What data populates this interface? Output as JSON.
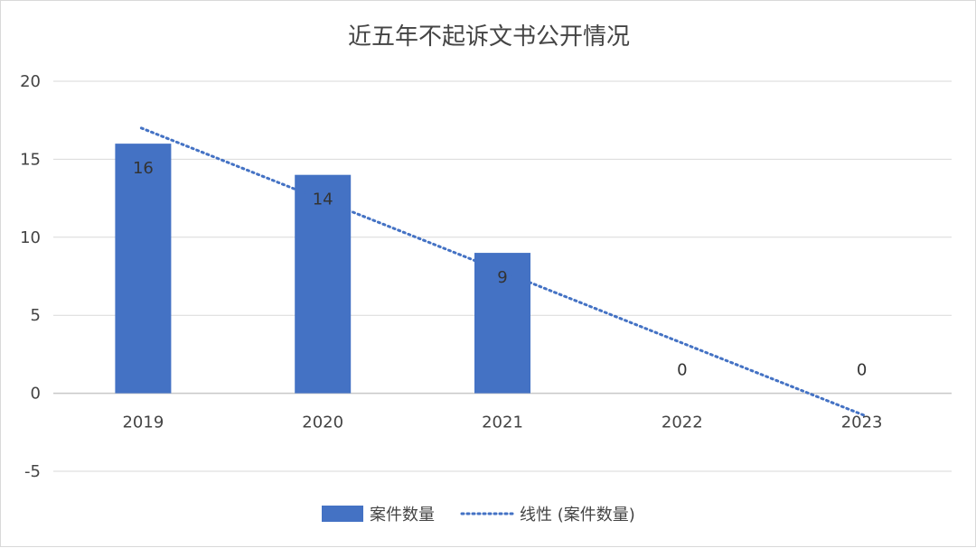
{
  "chart_data": {
    "type": "bar",
    "title": "近五年不起诉文书公开情况",
    "categories": [
      "2019",
      "2020",
      "2021",
      "2022",
      "2023"
    ],
    "series": [
      {
        "name": "案件数量",
        "values": [
          16,
          14,
          9,
          0,
          0
        ],
        "color": "#4472c4"
      }
    ],
    "data_labels": [
      "16",
      "14",
      "9",
      "0",
      "0"
    ],
    "trendline": {
      "type": "linear",
      "name": "线性 (案件数量)",
      "start": 17.0,
      "end": -1.4,
      "style": "dotted",
      "color": "#4472c4"
    },
    "ylim": [
      -5,
      20
    ],
    "yticks": [
      -5,
      0,
      5,
      10,
      15,
      20
    ],
    "grid": true,
    "legend": "bottom"
  }
}
